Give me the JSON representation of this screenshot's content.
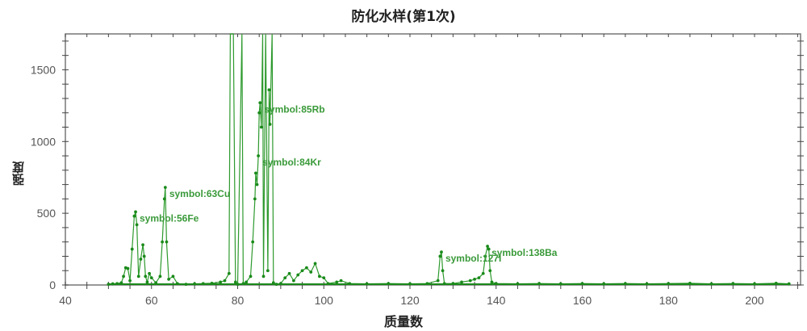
{
  "chart_data": {
    "type": "line",
    "title": "防化水样(第1次)",
    "xlabel": "质量数",
    "ylabel": "强度",
    "xlim": [
      40,
      210
    ],
    "ylim": [
      0,
      1750
    ],
    "x_ticks": [
      40,
      60,
      80,
      100,
      120,
      140,
      160,
      180,
      200
    ],
    "y_ticks": [
      0,
      500,
      1000,
      1500
    ],
    "grid": false,
    "legend": null,
    "series_color": "#1a8a1a",
    "series": [
      {
        "name": "intensity",
        "points": [
          [
            50,
            5
          ],
          [
            51,
            8
          ],
          [
            52,
            10
          ],
          [
            53,
            15
          ],
          [
            53.5,
            60
          ],
          [
            54,
            120
          ],
          [
            54.5,
            115
          ],
          [
            55,
            30
          ],
          [
            55.5,
            250
          ],
          [
            56,
            480
          ],
          [
            56.3,
            510
          ],
          [
            56.6,
            420
          ],
          [
            57,
            60
          ],
          [
            57.5,
            180
          ],
          [
            58,
            280
          ],
          [
            58.3,
            200
          ],
          [
            58.6,
            60
          ],
          [
            59,
            20
          ],
          [
            59.5,
            80
          ],
          [
            60,
            50
          ],
          [
            61,
            15
          ],
          [
            62,
            60
          ],
          [
            62.5,
            300
          ],
          [
            63,
            600
          ],
          [
            63.2,
            680
          ],
          [
            63.5,
            300
          ],
          [
            64,
            40
          ],
          [
            65,
            60
          ],
          [
            66,
            10
          ],
          [
            68,
            5
          ],
          [
            70,
            8
          ],
          [
            72,
            10
          ],
          [
            74,
            12
          ],
          [
            76,
            20
          ],
          [
            77,
            30
          ],
          [
            78,
            80
          ],
          [
            78.3,
            1750
          ],
          [
            79,
            1750
          ],
          [
            79.5,
            20
          ],
          [
            80,
            5
          ],
          [
            81,
            1750
          ],
          [
            81.3,
            10
          ],
          [
            82,
            20
          ],
          [
            83,
            60
          ],
          [
            83.5,
            300
          ],
          [
            84,
            600
          ],
          [
            84.2,
            780
          ],
          [
            84.5,
            700
          ],
          [
            84.8,
            900
          ],
          [
            85,
            1200
          ],
          [
            85.2,
            1270
          ],
          [
            85.5,
            1100
          ],
          [
            85.8,
            1750
          ],
          [
            86,
            60
          ],
          [
            86.5,
            1750
          ],
          [
            87,
            100
          ],
          [
            87.3,
            1360
          ],
          [
            87.5,
            1120
          ],
          [
            88,
            1750
          ],
          [
            88.3,
            15
          ],
          [
            89,
            5
          ],
          [
            90,
            10
          ],
          [
            91,
            50
          ],
          [
            92,
            80
          ],
          [
            93,
            30
          ],
          [
            94,
            70
          ],
          [
            95,
            100
          ],
          [
            96,
            120
          ],
          [
            97,
            90
          ],
          [
            98,
            150
          ],
          [
            99,
            60
          ],
          [
            100,
            50
          ],
          [
            101,
            10
          ],
          [
            103,
            20
          ],
          [
            104,
            30
          ],
          [
            106,
            10
          ],
          [
            110,
            8
          ],
          [
            115,
            10
          ],
          [
            120,
            8
          ],
          [
            124,
            10
          ],
          [
            126.5,
            30
          ],
          [
            127,
            200
          ],
          [
            127.3,
            230
          ],
          [
            127.6,
            100
          ],
          [
            128,
            10
          ],
          [
            130,
            10
          ],
          [
            132,
            20
          ],
          [
            134,
            30
          ],
          [
            135,
            40
          ],
          [
            136,
            50
          ],
          [
            137,
            80
          ],
          [
            137.5,
            200
          ],
          [
            138,
            270
          ],
          [
            138.3,
            250
          ],
          [
            138.6,
            100
          ],
          [
            139,
            20
          ],
          [
            140,
            10
          ],
          [
            145,
            8
          ],
          [
            150,
            10
          ],
          [
            155,
            8
          ],
          [
            160,
            10
          ],
          [
            165,
            8
          ],
          [
            170,
            10
          ],
          [
            175,
            8
          ],
          [
            180,
            10
          ],
          [
            185,
            12
          ],
          [
            190,
            8
          ],
          [
            195,
            10
          ],
          [
            200,
            8
          ],
          [
            205,
            12
          ],
          [
            208,
            8
          ]
        ]
      }
    ],
    "annotations": [
      {
        "text": "symbol:56Fe",
        "x": 56.3,
        "y": 510
      },
      {
        "text": "symbol:63Cu",
        "x": 63.2,
        "y": 680
      },
      {
        "text": "symbol:84Kr",
        "x": 84.8,
        "y": 900
      },
      {
        "text": "symbol:85Rb",
        "x": 85.2,
        "y": 1270
      },
      {
        "text": "symbol:127I",
        "x": 127.3,
        "y": 230
      },
      {
        "text": "symbol:138Ba",
        "x": 138,
        "y": 270
      }
    ]
  },
  "title": "防化水样(第1次)",
  "axes": {
    "x_label": "质量数",
    "y_label": "强度"
  }
}
